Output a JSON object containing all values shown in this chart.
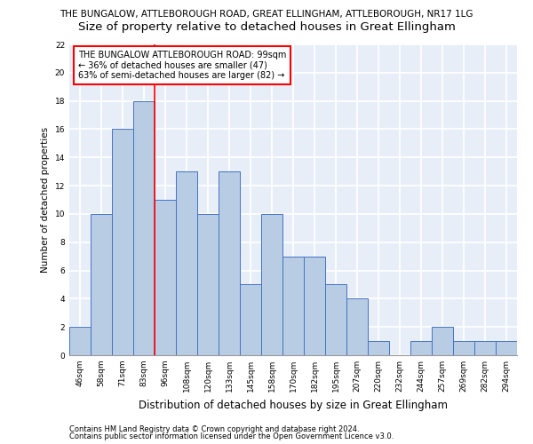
{
  "title_line1": "THE BUNGALOW, ATTLEBOROUGH ROAD, GREAT ELLINGHAM, ATTLEBOROUGH, NR17 1LG",
  "title_line2": "Size of property relative to detached houses in Great Ellingham",
  "xlabel": "Distribution of detached houses by size in Great Ellingham",
  "ylabel": "Number of detached properties",
  "footer1": "Contains HM Land Registry data © Crown copyright and database right 2024.",
  "footer2": "Contains public sector information licensed under the Open Government Licence v3.0.",
  "annotation_text": "THE BUNGALOW ATTLEBOROUGH ROAD: 99sqm\n← 36% of detached houses are smaller (47)\n63% of semi-detached houses are larger (82) →",
  "bar_color": "#b8cce4",
  "bar_edge_color": "#4472c4",
  "vline_color": "red",
  "categories": [
    "46sqm",
    "58sqm",
    "71sqm",
    "83sqm",
    "96sqm",
    "108sqm",
    "120sqm",
    "133sqm",
    "145sqm",
    "158sqm",
    "170sqm",
    "182sqm",
    "195sqm",
    "207sqm",
    "220sqm",
    "232sqm",
    "244sqm",
    "257sqm",
    "269sqm",
    "282sqm",
    "294sqm"
  ],
  "values": [
    2,
    10,
    16,
    18,
    11,
    13,
    10,
    13,
    5,
    10,
    7,
    7,
    5,
    4,
    1,
    0,
    1,
    2,
    1,
    1,
    1
  ],
  "ylim": [
    0,
    22
  ],
  "yticks": [
    0,
    2,
    4,
    6,
    8,
    10,
    12,
    14,
    16,
    18,
    20,
    22
  ],
  "vline_x_index": 3.5,
  "bg_color": "#e8eef8",
  "grid_color": "#ffffff",
  "title1_fontsize": 7.5,
  "title2_fontsize": 9.5,
  "footer_fontsize": 6.0,
  "ylabel_fontsize": 7.5,
  "xlabel_fontsize": 8.5,
  "annot_fontsize": 7.0,
  "tick_fontsize": 6.5
}
